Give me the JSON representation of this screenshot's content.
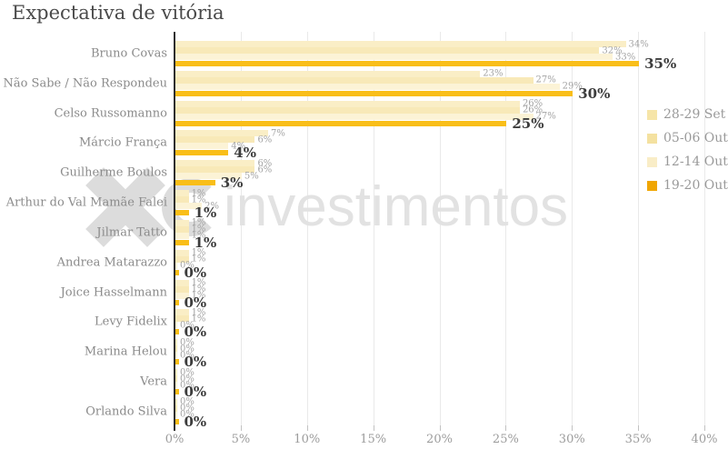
{
  "page": {
    "title": "Expectativa de vitória"
  },
  "watermark": {
    "text": "investimentos",
    "logo": "x-and-c-brand-mark"
  },
  "colors": {
    "axis": "#2e2e2e",
    "grid": "#e9e9e9",
    "tick_label": "#9c9c9c",
    "category_label": "#8b8b8b",
    "small_value_label": "#a3a3a3",
    "bold_value_label": "#3c3c3c",
    "watermark": "#dcdcdc",
    "title": "#4a4a4a",
    "emphasis_bar": "#f9be19"
  },
  "chart_data": {
    "type": "bar",
    "orientation": "horizontal",
    "title": "Expectativa de vitória",
    "categories": [
      "Bruno Covas",
      "Não Sabe / Não Respondeu",
      "Celso Russomanno",
      "Márcio França",
      "Guilherme Boulos",
      "Arthur do Val Mamãe Falei",
      "Jilmar Tatto",
      "Andrea Matarazzo",
      "Joice Hasselmann",
      "Levy Fidelix",
      "Marina Helou",
      "Vera",
      "Orlando Silva"
    ],
    "series": [
      {
        "name": "28-29 Set",
        "color": "#faeec6",
        "legend_color": "#f6e5a8",
        "emphasis": false,
        "values": [
          34,
          23,
          26,
          7,
          6,
          1,
          1,
          1,
          1,
          1,
          0,
          0,
          0
        ]
      },
      {
        "name": "05-06 Out",
        "color": "#f8e9b8",
        "legend_color": "#f4e1a0",
        "emphasis": false,
        "values": [
          32,
          27,
          26,
          6,
          6,
          1,
          1,
          1,
          1,
          1,
          0,
          0,
          0
        ]
      },
      {
        "name": "12-14 Out",
        "color": "#fcf3d6",
        "legend_color": "#f9edc7",
        "emphasis": false,
        "values": [
          33,
          29,
          27,
          4,
          5,
          2,
          1,
          0,
          1,
          0,
          0,
          0,
          0
        ]
      },
      {
        "name": "19-20 Out",
        "color": "#f9be19",
        "legend_color": "#f0a602",
        "emphasis": true,
        "values": [
          35,
          30,
          25,
          4,
          3,
          1,
          1,
          0,
          0,
          0,
          0,
          0,
          0
        ]
      }
    ],
    "x_ticks": [
      0,
      5,
      10,
      15,
      20,
      25,
      30,
      35,
      40
    ],
    "xlim": [
      0,
      40
    ],
    "value_suffix": "%",
    "grid": true,
    "legend_position": "right"
  }
}
